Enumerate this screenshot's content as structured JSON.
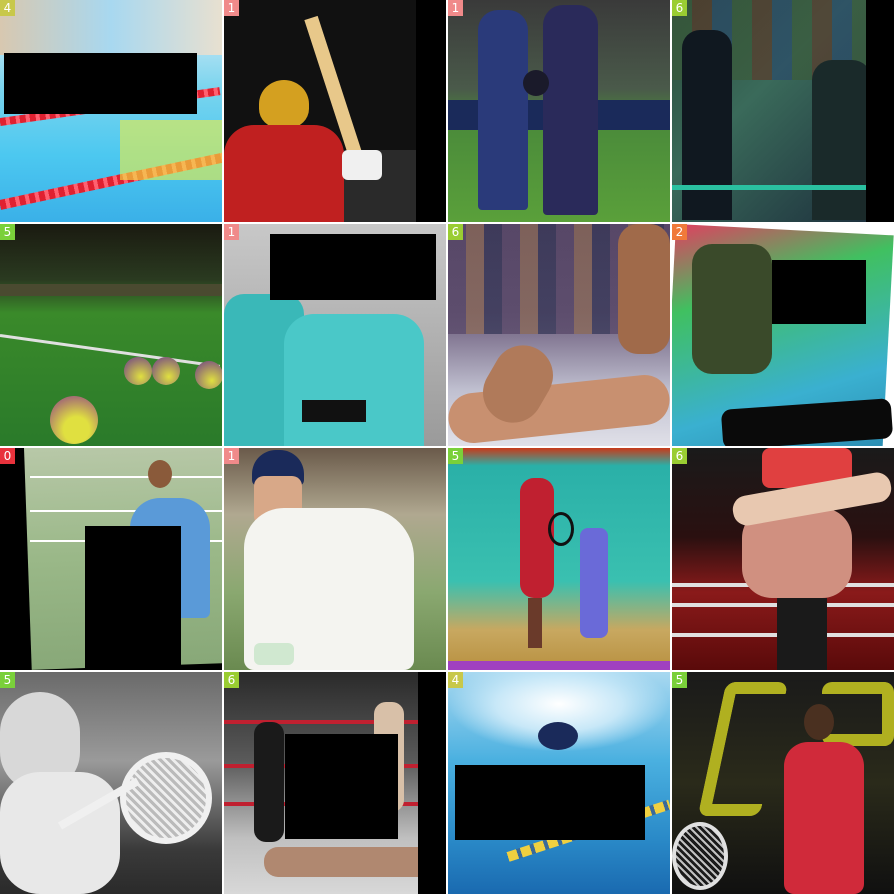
{
  "colors": {
    "0": "#e8323c",
    "1": "#f08a8a",
    "2": "#f07a3a",
    "4": "#c8c84a",
    "5": "#7ad03a",
    "6": "#9acd32"
  },
  "tiles": [
    {
      "label": "4",
      "scene": "swimming-pool-lanes",
      "color_key": "4"
    },
    {
      "label": "1",
      "scene": "cricket-batsman-helmet",
      "color_key": "1"
    },
    {
      "label": "1",
      "scene": "cricket-players-walking",
      "color_key": "1"
    },
    {
      "label": "6",
      "scene": "wrestling-ring-entrance",
      "color_key": "6"
    },
    {
      "label": "5",
      "scene": "tennis-balls-on-grass",
      "color_key": "5"
    },
    {
      "label": "1",
      "scene": "cricket-players-teal",
      "color_key": "1"
    },
    {
      "label": "6",
      "scene": "wrestler-on-mat",
      "color_key": "6"
    },
    {
      "label": "2",
      "scene": "dancer-on-court",
      "color_key": "2"
    },
    {
      "label": "0",
      "scene": "badminton-player",
      "color_key": "0"
    },
    {
      "label": "1",
      "scene": "cricket-batsman-white",
      "color_key": "1"
    },
    {
      "label": "5",
      "scene": "tennis-player-court",
      "color_key": "5"
    },
    {
      "label": "6",
      "scene": "wrestler-lifting",
      "color_key": "6"
    },
    {
      "label": "5",
      "scene": "vintage-tennis-player",
      "color_key": "5"
    },
    {
      "label": "6",
      "scene": "wrestling-ring-fight",
      "color_key": "6"
    },
    {
      "label": "4",
      "scene": "swimmer-freestyle",
      "color_key": "4"
    },
    {
      "label": "5",
      "scene": "tennis-player-red",
      "color_key": "5"
    }
  ]
}
